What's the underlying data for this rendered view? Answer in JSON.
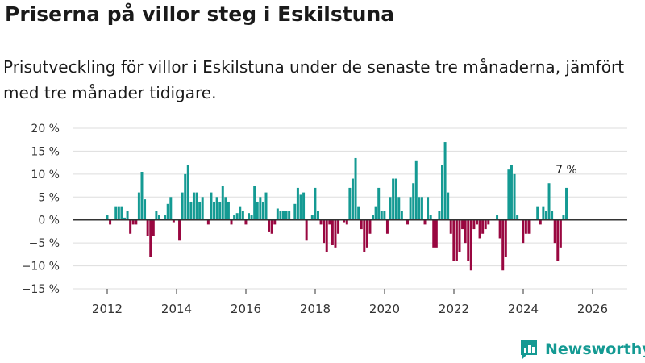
{
  "title": "Priserna på villor steg i Eskilstuna",
  "subtitle": "Prisutveckling för villor i Eskilstuna under de senaste tre månaderna, jämfört med tre månader tidigare.",
  "brand": "Newsworthy",
  "colors": {
    "positive": "#149a93",
    "negative": "#990740",
    "brand": "#149a93",
    "grid": "#dddddd",
    "axis": "#333333"
  },
  "chart_data": {
    "type": "bar",
    "ylim": [
      -15,
      20
    ],
    "yticks": [
      -15,
      -10,
      -5,
      0,
      5,
      10,
      15,
      20
    ],
    "ytick_labels": [
      "−15 %",
      "−10 %",
      "−5 %",
      "0 %",
      "5 %",
      "10 %",
      "15 %",
      "20 %"
    ],
    "xlim": [
      2011.0,
      2027.0
    ],
    "xticks": [
      2012,
      2014,
      2016,
      2018,
      2020,
      2022,
      2024,
      2026
    ],
    "xtick_labels": [
      "2012",
      "2014",
      "2016",
      "2018",
      "2020",
      "2022",
      "2024",
      "2026"
    ],
    "x_start": 2012.0,
    "step": 0.0833,
    "annotation": {
      "label": "7 %",
      "value": 7
    },
    "values": [
      1,
      -1,
      0,
      3,
      3,
      3,
      0.5,
      2,
      -3,
      -1,
      -1,
      6,
      10.5,
      4.5,
      -3.5,
      -8,
      -3.5,
      2,
      1,
      0,
      1,
      3.5,
      5,
      -0.5,
      0,
      -4.5,
      6,
      10,
      12,
      4,
      6,
      6,
      4,
      5,
      0,
      -1,
      6,
      4,
      5,
      4,
      7.5,
      5,
      4,
      -1,
      1,
      1.5,
      3,
      2,
      -1,
      1.5,
      1,
      7.5,
      4,
      5,
      4,
      6,
      -2.5,
      -3,
      -1,
      2.5,
      2,
      2,
      2,
      2,
      0,
      3.5,
      7,
      5.5,
      6,
      -4.5,
      0,
      1,
      7,
      2,
      -1,
      -5,
      -7,
      -1,
      -5.5,
      -6,
      -3,
      0,
      -0.5,
      -1,
      7,
      9,
      13.5,
      3,
      -2,
      -7,
      -6,
      -3,
      1,
      3,
      7,
      2,
      2,
      -3,
      5,
      9,
      9,
      5,
      2,
      0,
      -1,
      5,
      8,
      13,
      5,
      5,
      -1,
      5,
      1,
      -6,
      -6,
      2,
      12,
      17,
      6,
      -3,
      -9,
      -9,
      -7,
      -2,
      -5,
      -9,
      -11,
      -2,
      -1,
      -4,
      -3,
      -2,
      -1,
      0,
      0,
      1,
      -4,
      -11,
      -8,
      11,
      12,
      10,
      1,
      0,
      -5,
      -3,
      -3,
      0,
      0,
      3,
      -1,
      3,
      2,
      8,
      2,
      -5,
      -9,
      -6,
      1,
      7
    ]
  }
}
